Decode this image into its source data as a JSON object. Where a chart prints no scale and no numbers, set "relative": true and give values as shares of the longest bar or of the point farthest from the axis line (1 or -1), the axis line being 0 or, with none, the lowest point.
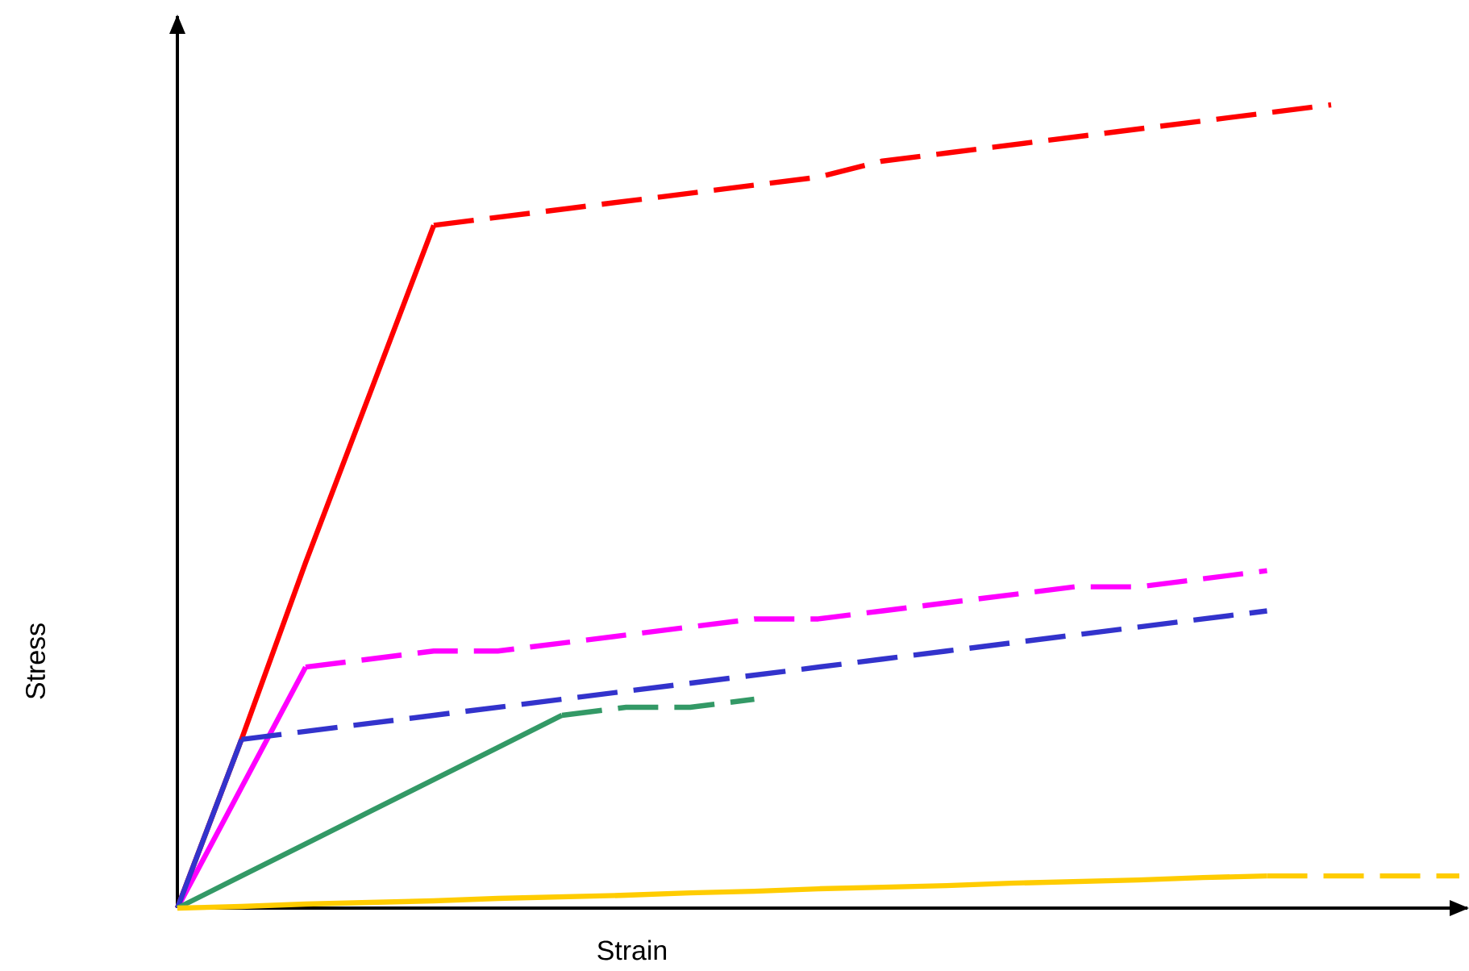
{
  "chart_data": {
    "type": "line",
    "relative": true,
    "xlabel": "Strain",
    "ylabel": "Stress",
    "categories": [
      null,
      null,
      null,
      null,
      null,
      null,
      null,
      null,
      null,
      null,
      null,
      null,
      null,
      null,
      null,
      null,
      null,
      null,
      null,
      null,
      null
    ],
    "series": [
      {
        "color": "#ff0000",
        "line_style": "solid",
        "values": [
          0,
          0.21,
          0.43,
          0.64,
          0.85,
          null,
          null,
          null,
          null,
          null,
          null,
          null,
          null,
          null,
          null,
          null,
          null,
          null,
          null,
          null,
          null
        ]
      },
      {
        "color": "#ff0000",
        "line_style": "dashed",
        "values": [
          null,
          null,
          null,
          null,
          0.85,
          0.86,
          0.87,
          0.88,
          0.89,
          0.9,
          0.91,
          0.93,
          0.94,
          0.95,
          0.96,
          0.97,
          0.98,
          0.99,
          1,
          null,
          null
        ]
      },
      {
        "color": "#ff00ff",
        "line_style": "solid",
        "values": [
          0,
          0.15,
          0.3,
          null,
          null,
          null,
          null,
          null,
          null,
          null,
          null,
          null,
          null,
          null,
          null,
          null,
          null,
          null,
          null,
          null,
          null
        ]
      },
      {
        "color": "#ff00ff",
        "line_style": "dashed",
        "values": [
          null,
          null,
          0.3,
          0.31,
          0.32,
          0.32,
          0.33,
          0.34,
          0.35,
          0.36,
          0.36,
          0.37,
          0.38,
          0.39,
          0.4,
          0.4,
          0.41,
          0.42,
          null,
          null,
          null
        ]
      },
      {
        "color": "#3333cc",
        "line_style": "solid",
        "values": [
          0,
          0.21,
          null,
          null,
          null,
          null,
          null,
          null,
          null,
          null,
          null,
          null,
          null,
          null,
          null,
          null,
          null,
          null,
          null,
          null,
          null
        ]
      },
      {
        "color": "#3333cc",
        "line_style": "dashed",
        "values": [
          null,
          0.21,
          0.22,
          0.23,
          0.24,
          0.25,
          0.26,
          0.27,
          0.28,
          0.29,
          0.3,
          0.31,
          0.32,
          0.33,
          0.34,
          0.35,
          0.36,
          0.37,
          null,
          null,
          null
        ]
      },
      {
        "color": "#339966",
        "line_style": "solid",
        "values": [
          0,
          0.04,
          0.08,
          0.12,
          0.16,
          0.2,
          0.24,
          null,
          null,
          null,
          null,
          null,
          null,
          null,
          null,
          null,
          null,
          null,
          null,
          null,
          null
        ]
      },
      {
        "color": "#339966",
        "line_style": "dashed",
        "values": [
          null,
          null,
          null,
          null,
          null,
          null,
          0.24,
          0.25,
          0.25,
          0.26,
          null,
          null,
          null,
          null,
          null,
          null,
          null,
          null,
          null,
          null,
          null
        ]
      },
      {
        "color": "#ffcc00",
        "line_style": "solid",
        "values": [
          0,
          0.002,
          0.005,
          0.007,
          0.009,
          0.012,
          0.014,
          0.016,
          0.019,
          0.021,
          0.024,
          0.026,
          0.028,
          0.031,
          0.033,
          0.035,
          0.038,
          0.04,
          null,
          null,
          null
        ]
      },
      {
        "color": "#ffcc00",
        "line_style": "dashed",
        "values": [
          null,
          null,
          null,
          null,
          null,
          null,
          null,
          null,
          null,
          null,
          null,
          null,
          null,
          null,
          null,
          null,
          null,
          0.04,
          0.04,
          0.04,
          0.04
        ]
      }
    ]
  }
}
